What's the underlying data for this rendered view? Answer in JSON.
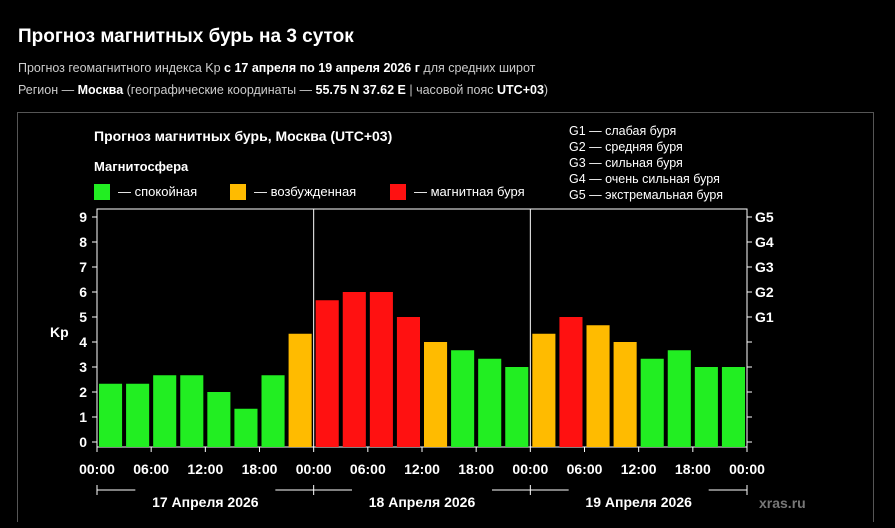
{
  "header": {
    "title": "Прогноз магнитных бурь на 3 суток",
    "line1_pre": "Прогноз геомагнитного индекса Kp ",
    "line1_bold": "с 17 апреля по 19 апреля 2026 г",
    "line1_post": " для средних широт",
    "line2_pre": "Регион — ",
    "line2_region": "Москва",
    "line2_mid": " (географические координаты — ",
    "line2_coords": "55.75 N 37.62 E",
    "line2_sep": " | часовой пояс ",
    "line2_tz": "UTC+03",
    "line2_post": ")"
  },
  "chart_data": {
    "type": "bar",
    "title": "Прогноз магнитных бурь, Москва (UTC+03)",
    "legend_title": "Магнитосфера",
    "legend": [
      {
        "label": "— спокойная",
        "color": "#22ee22"
      },
      {
        "label": "— возбужденная",
        "color": "#ffbb00"
      },
      {
        "label": "— магнитная буря",
        "color": "#ff1111"
      }
    ],
    "g_legend": [
      "G1 — слабая буря",
      "G2 — средняя буря",
      "G3 — сильная буря",
      "G4 — очень сильная буря",
      "G5 — экстремальная буря"
    ],
    "ylabel": "Kp",
    "ylim": [
      0,
      9
    ],
    "yticks": [
      "0",
      "1",
      "2",
      "3",
      "4",
      "5",
      "6",
      "7",
      "8",
      "9"
    ],
    "right_ticks": [
      {
        "label": "G1",
        "value": 5
      },
      {
        "label": "G2",
        "value": 6
      },
      {
        "label": "G3",
        "value": 7
      },
      {
        "label": "G4",
        "value": 8
      },
      {
        "label": "G5",
        "value": 9
      }
    ],
    "xticks": [
      "00:00",
      "06:00",
      "12:00",
      "18:00",
      "00:00",
      "06:00",
      "12:00",
      "18:00",
      "00:00",
      "06:00",
      "12:00",
      "18:00",
      "00:00"
    ],
    "days": [
      "17 Апреля 2026",
      "18 Апреля 2026",
      "19 Апреля 2026"
    ],
    "values": [
      2.33,
      2.33,
      2.67,
      2.67,
      2.0,
      1.33,
      2.67,
      4.33,
      5.67,
      6.0,
      6.0,
      5.0,
      4.0,
      3.67,
      3.33,
      3.0,
      4.33,
      5.0,
      4.67,
      4.0,
      3.33,
      3.67,
      3.0,
      3.0
    ],
    "colors": [
      "#22ee22",
      "#22ee22",
      "#22ee22",
      "#22ee22",
      "#22ee22",
      "#22ee22",
      "#22ee22",
      "#ffbb00",
      "#ff1111",
      "#ff1111",
      "#ff1111",
      "#ff1111",
      "#ffbb00",
      "#22ee22",
      "#22ee22",
      "#22ee22",
      "#ffbb00",
      "#ff1111",
      "#ffbb00",
      "#ffbb00",
      "#22ee22",
      "#22ee22",
      "#22ee22",
      "#22ee22"
    ],
    "grid": false,
    "watermark": "xras.ru"
  }
}
